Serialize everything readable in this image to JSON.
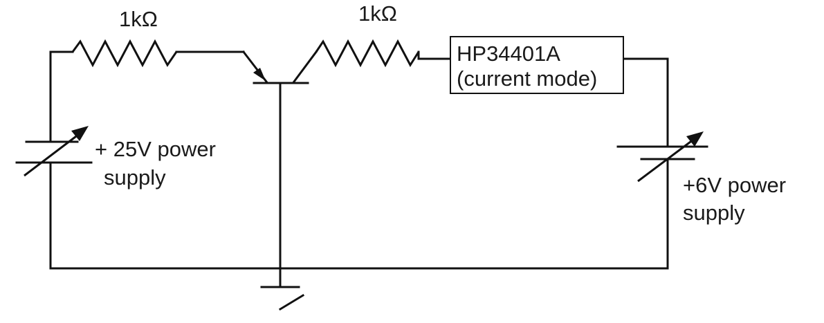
{
  "diagram": {
    "resistor_1": {
      "label": "1kΩ"
    },
    "resistor_2": {
      "label": "1kΩ"
    },
    "meter": {
      "line1": "HP34401A",
      "line2": "(current mode)"
    },
    "supply_left": {
      "line1": "+ 25V power",
      "line2": "supply"
    },
    "supply_right": {
      "line1": "+6V power",
      "line2": "supply"
    },
    "components": {
      "transistor": "bjt-transistor",
      "ground": "ground-symbol",
      "variable_supply": "variable-dc-source"
    }
  }
}
